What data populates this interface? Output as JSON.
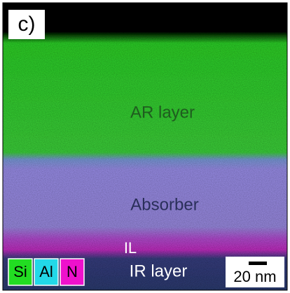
{
  "panel_label": "c)",
  "layers": {
    "ar": "AR layer",
    "absorber": "Absorber",
    "il": "IL",
    "ir": "IR layer"
  },
  "legend": [
    "Si",
    "Al",
    "N"
  ],
  "scale_bar": "20 nm"
}
